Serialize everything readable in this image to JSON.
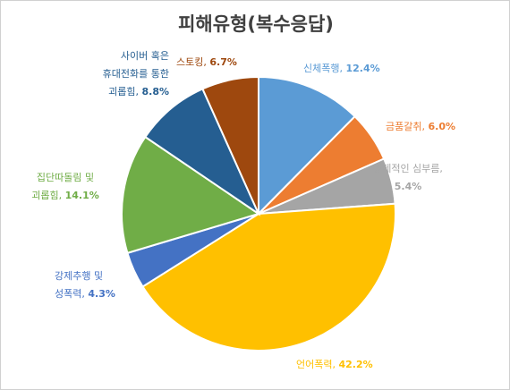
{
  "chart_data": {
    "type": "pie",
    "title": "피해유형(복수응답)",
    "slices": [
      {
        "label_lines": [
          "신체폭행,"
        ],
        "pct_text": "12.4%",
        "value": 12.4,
        "color": "#5b9bd5"
      },
      {
        "label_lines": [
          "금품갈취,"
        ],
        "pct_text": "6.0%",
        "value": 6.0,
        "color": "#ed7d31"
      },
      {
        "label_lines": [
          "강제적인 심부름,"
        ],
        "pct_text": "5.4%",
        "value": 5.4,
        "color": "#a5a5a5"
      },
      {
        "label_lines": [
          "언어폭력,"
        ],
        "pct_text": "42.2%",
        "value": 42.2,
        "color": "#ffc000"
      },
      {
        "label_lines": [
          "강제추행 및",
          "성폭력,"
        ],
        "pct_text": "4.3%",
        "value": 4.3,
        "color": "#4472c4"
      },
      {
        "label_lines": [
          "집단따돌림 및",
          "괴롭힘,"
        ],
        "pct_text": "14.1%",
        "value": 14.1,
        "color": "#70ad47"
      },
      {
        "label_lines": [
          "사이버 혹은",
          "휴대전화를 통한",
          "괴롭힘,"
        ],
        "pct_text": "8.8%",
        "value": 8.8,
        "color": "#255e91"
      },
      {
        "label_lines": [
          "스토킹,"
        ],
        "pct_text": "6.7%",
        "value": 6.7,
        "color": "#9e480e"
      }
    ]
  }
}
